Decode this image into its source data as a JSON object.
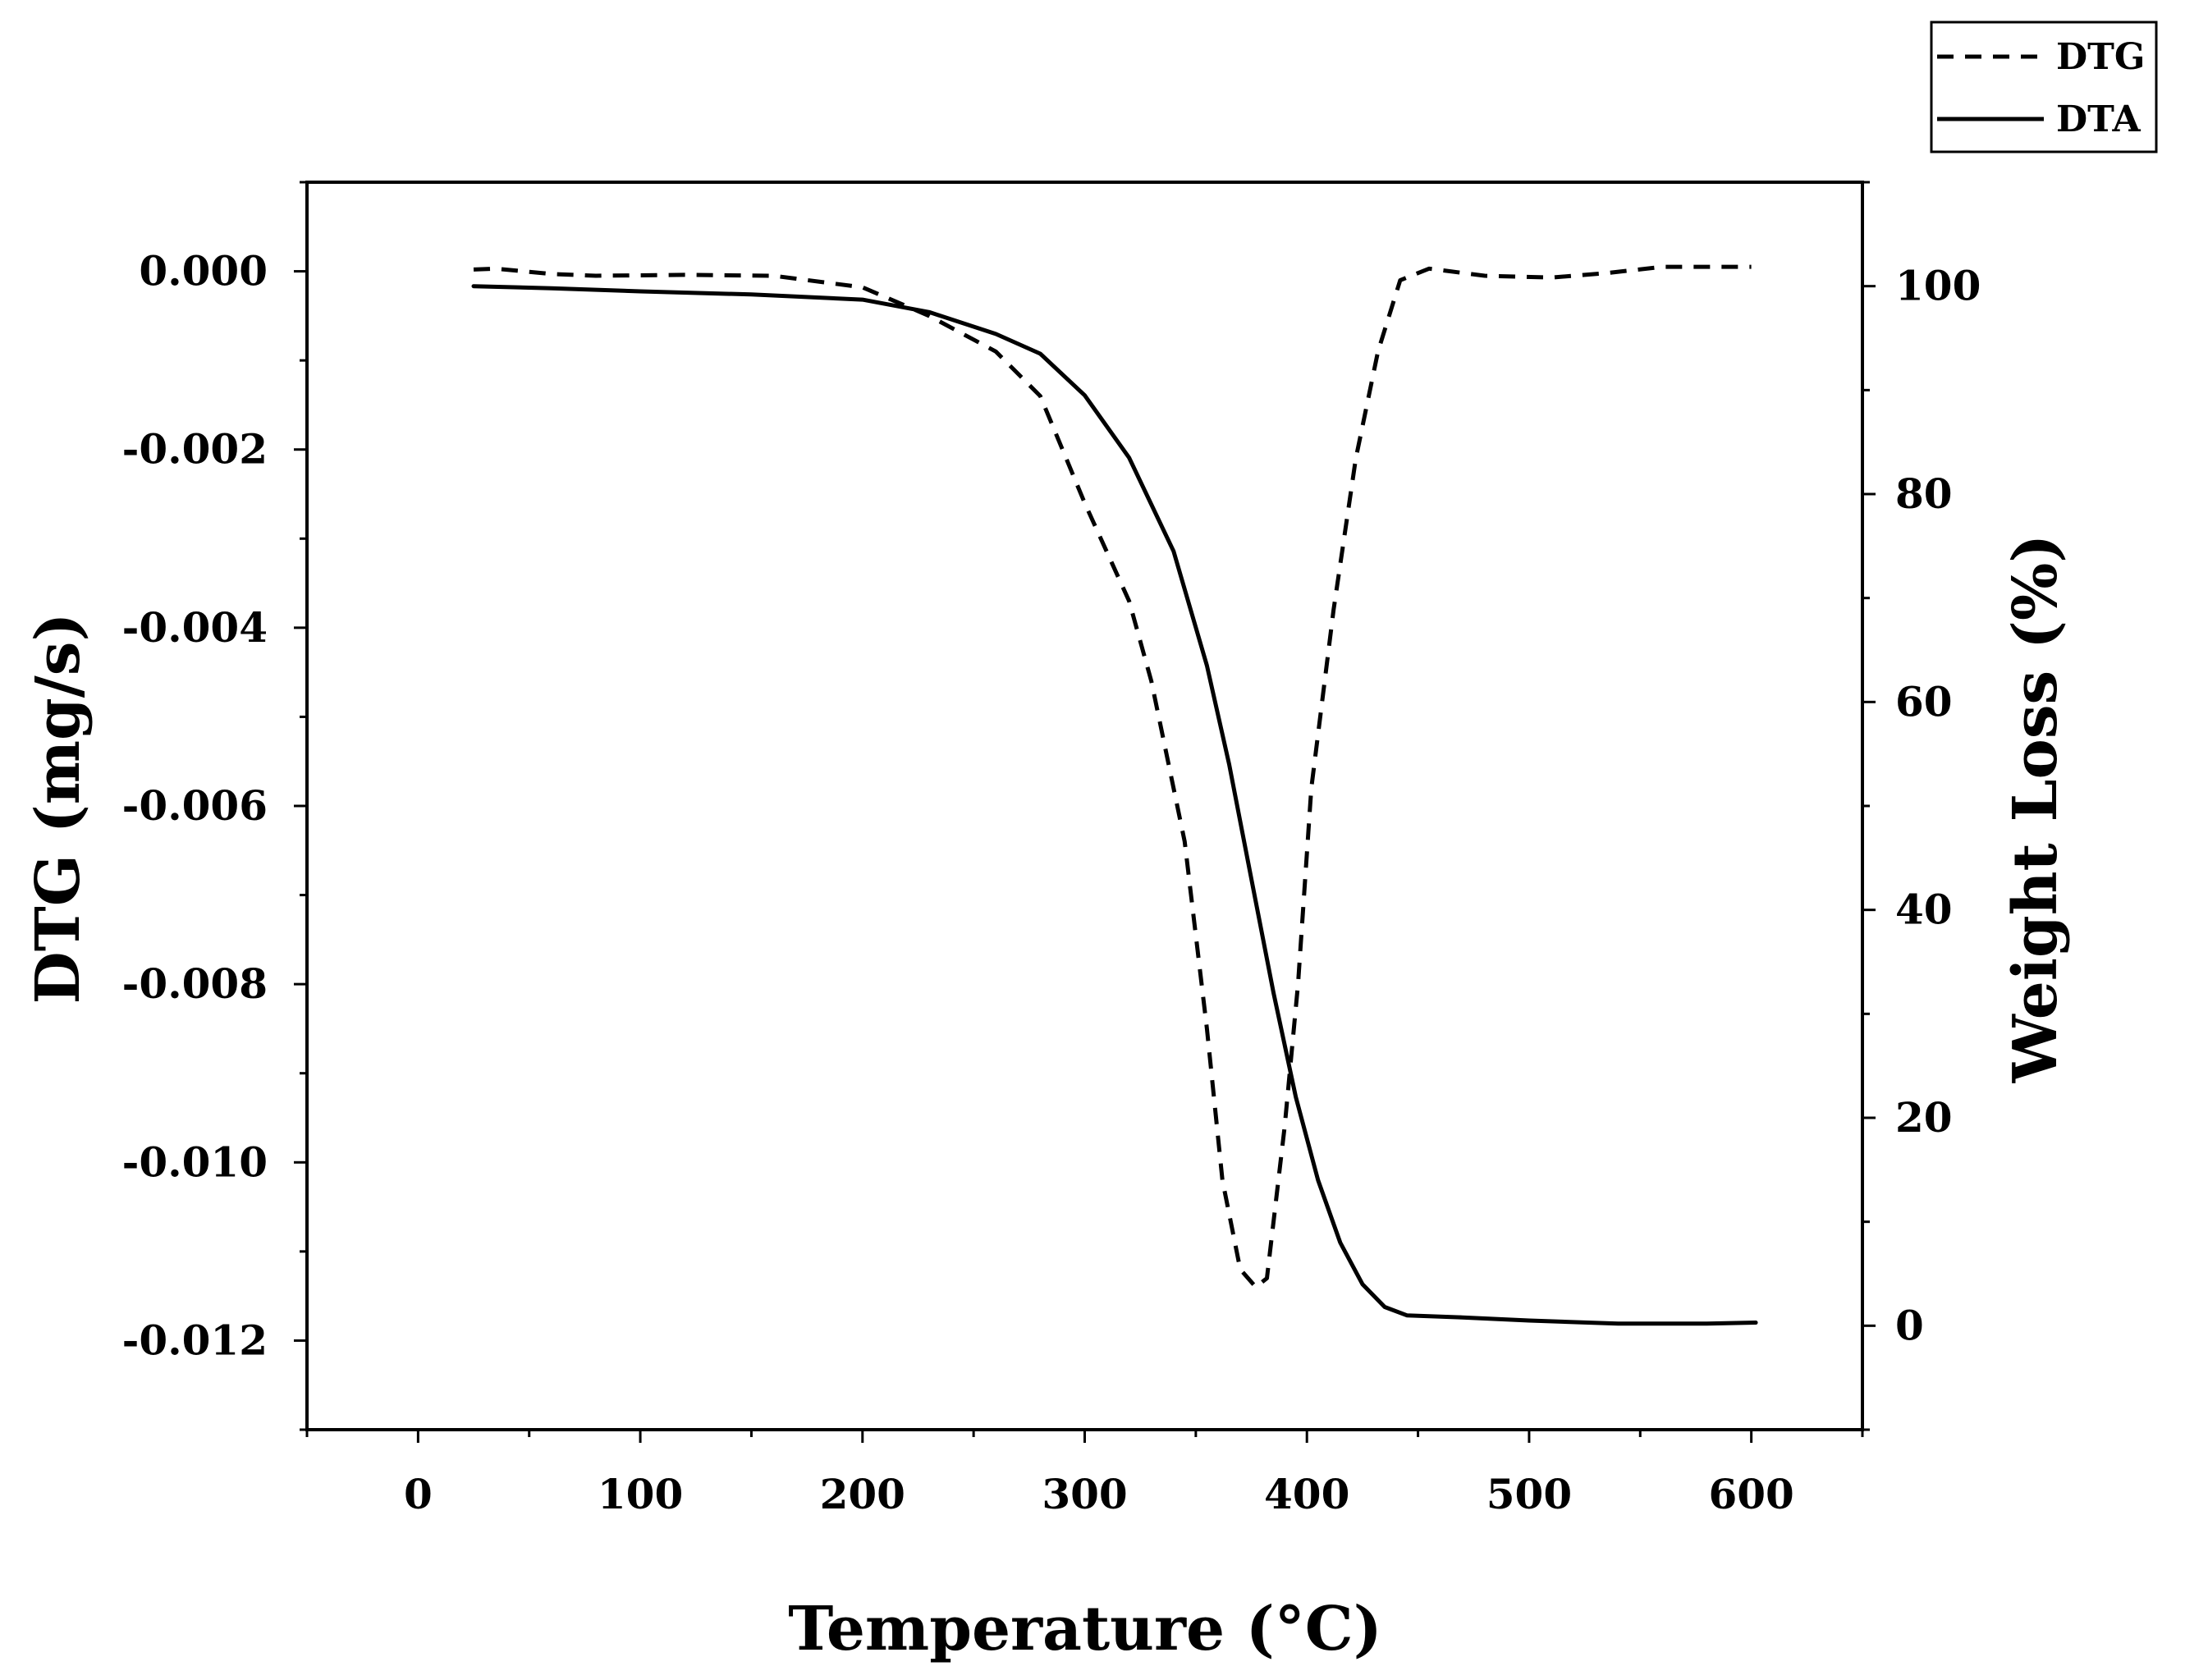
{
  "chart_data": {
    "type": "line",
    "xlabel": "Temperature (°C)",
    "ylabel_left": "DTG (mg/s)",
    "ylabel_right": "Weight Loss (%)",
    "xlim": [
      -50,
      650
    ],
    "ylim_left": [
      -0.013,
      0.001
    ],
    "ylim_right": [
      -10,
      110
    ],
    "x_ticks": [
      0,
      100,
      200,
      300,
      400,
      500,
      600
    ],
    "x_tick_labels": [
      "0",
      "100",
      "200",
      "300",
      "400",
      "500",
      "600"
    ],
    "y_left_ticks": [
      0,
      -0.002,
      -0.004,
      -0.006,
      -0.008,
      -0.01,
      -0.012
    ],
    "y_left_tick_labels": [
      "0.000",
      "-0.002",
      "-0.004",
      "-0.006",
      "-0.008",
      "-0.010",
      "-0.012"
    ],
    "y_right_ticks": [
      0,
      20,
      40,
      60,
      80,
      100
    ],
    "y_right_tick_labels": [
      "0",
      "20",
      "40",
      "60",
      "80",
      "100"
    ],
    "grid": false,
    "legend_position": "top-right",
    "series": [
      {
        "name": "DTG",
        "axis": "left",
        "style": "dashed",
        "color": "#000000",
        "points": [
          [
            25,
            2e-05
          ],
          [
            35,
            3e-05
          ],
          [
            60,
            -3e-05
          ],
          [
            80,
            -5e-05
          ],
          [
            120,
            -4e-05
          ],
          [
            160,
            -5e-05
          ],
          [
            200,
            -0.00018
          ],
          [
            230,
            -0.0005
          ],
          [
            260,
            -0.0009
          ],
          [
            280,
            -0.0014
          ],
          [
            300,
            -0.0026
          ],
          [
            320,
            -0.0037
          ],
          [
            330,
            -0.0046
          ],
          [
            345,
            -0.0064
          ],
          [
            355,
            -0.0085
          ],
          [
            362,
            -0.0102
          ],
          [
            370,
            -0.0112
          ],
          [
            377,
            -0.0114
          ],
          [
            382,
            -0.0113
          ],
          [
            390,
            -0.0096
          ],
          [
            396,
            -0.008
          ],
          [
            402,
            -0.0058
          ],
          [
            412,
            -0.0038
          ],
          [
            422,
            -0.0021
          ],
          [
            432,
            -0.0009
          ],
          [
            442,
            -0.0001
          ],
          [
            455,
            3e-05
          ],
          [
            480,
            -5e-05
          ],
          [
            510,
            -7e-05
          ],
          [
            535,
            -2e-05
          ],
          [
            560,
            5e-05
          ],
          [
            600,
            5e-05
          ]
        ]
      },
      {
        "name": "DTA",
        "axis": "right",
        "style": "solid",
        "color": "#000000",
        "points": [
          [
            25,
            100
          ],
          [
            60,
            99.8
          ],
          [
            100,
            99.5
          ],
          [
            150,
            99.2
          ],
          [
            200,
            98.7
          ],
          [
            230,
            97.5
          ],
          [
            260,
            95.4
          ],
          [
            280,
            93.5
          ],
          [
            300,
            89.5
          ],
          [
            320,
            83.5
          ],
          [
            340,
            74.5
          ],
          [
            355,
            63.5
          ],
          [
            365,
            54
          ],
          [
            375,
            43
          ],
          [
            385,
            32
          ],
          [
            395,
            22
          ],
          [
            405,
            14
          ],
          [
            415,
            8
          ],
          [
            425,
            4
          ],
          [
            435,
            1.8
          ],
          [
            445,
            1.0
          ],
          [
            470,
            0.8
          ],
          [
            500,
            0.5
          ],
          [
            540,
            0.2
          ],
          [
            580,
            0.2
          ],
          [
            602,
            0.3
          ]
        ]
      }
    ]
  }
}
